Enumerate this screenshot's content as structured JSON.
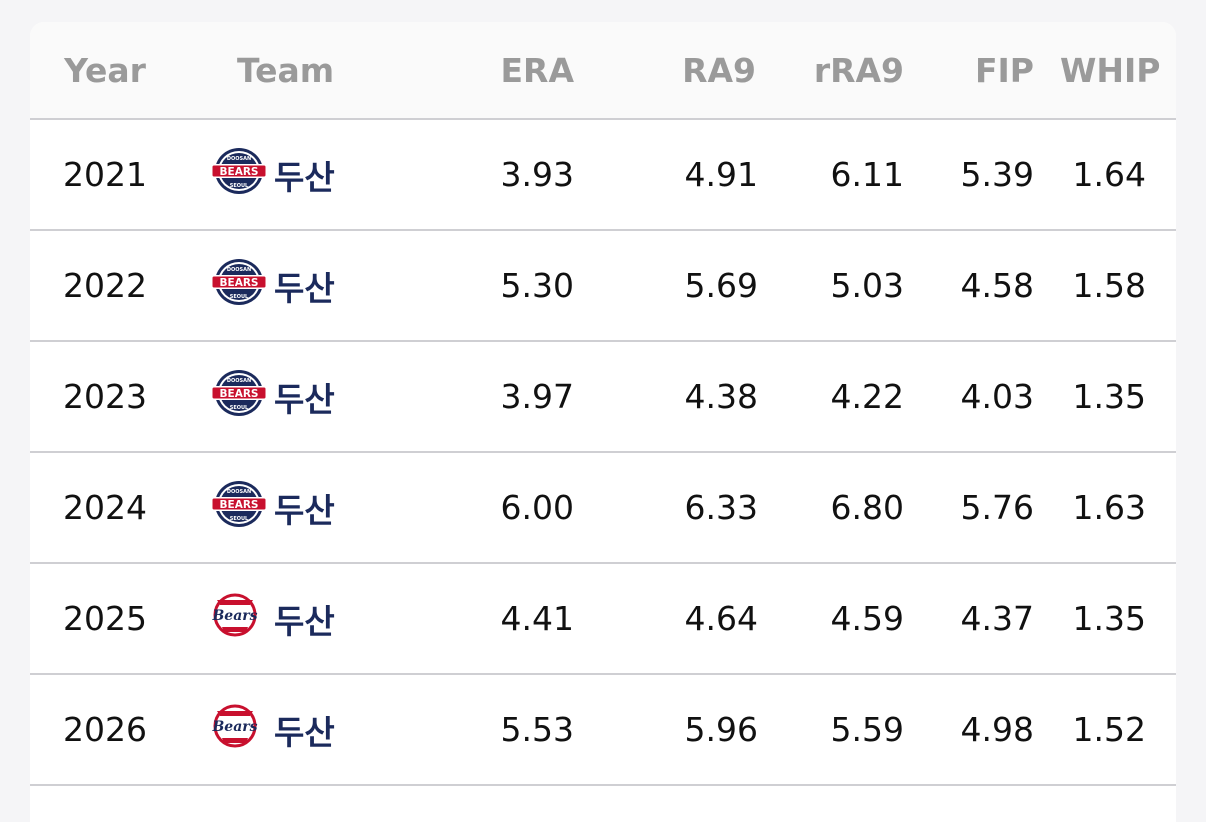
{
  "table": {
    "headers": {
      "year": "Year",
      "team": "Team",
      "era": "ERA",
      "ra9": "RA9",
      "rra9": "rRA9",
      "fip": "FIP",
      "whip": "WHIP"
    },
    "rows": [
      {
        "year": "2021",
        "team": "두산",
        "logo": "doosan-bears-seoul-logo",
        "era": "3.93",
        "ra9": "4.91",
        "rra9": "6.11",
        "fip": "5.39",
        "whip": "1.64"
      },
      {
        "year": "2022",
        "team": "두산",
        "logo": "doosan-bears-seoul-logo",
        "era": "5.30",
        "ra9": "5.69",
        "rra9": "5.03",
        "fip": "4.58",
        "whip": "1.58"
      },
      {
        "year": "2023",
        "team": "두산",
        "logo": "doosan-bears-seoul-logo",
        "era": "3.97",
        "ra9": "4.38",
        "rra9": "4.22",
        "fip": "4.03",
        "whip": "1.35"
      },
      {
        "year": "2024",
        "team": "두산",
        "logo": "doosan-bears-seoul-logo",
        "era": "6.00",
        "ra9": "6.33",
        "rra9": "6.80",
        "fip": "5.76",
        "whip": "1.63"
      },
      {
        "year": "2025",
        "team": "두산",
        "logo": "doosan-bears-script-logo",
        "era": "4.41",
        "ra9": "4.64",
        "rra9": "4.59",
        "fip": "4.37",
        "whip": "1.35"
      },
      {
        "year": "2026",
        "team": "두산",
        "logo": "doosan-bears-script-logo",
        "era": "5.53",
        "ra9": "5.96",
        "rra9": "5.59",
        "fip": "4.98",
        "whip": "1.52"
      }
    ]
  },
  "logos": {
    "seoul": {
      "top": "DOOSAN",
      "main": "BEARS",
      "bottom": "SEOUL"
    },
    "script": {
      "main": "Bears"
    }
  },
  "colors": {
    "team_navy": "#1b2a5c",
    "logo_red": "#c8102e",
    "header_text": "#9a9a9a",
    "divider": "#cfcfd3"
  }
}
